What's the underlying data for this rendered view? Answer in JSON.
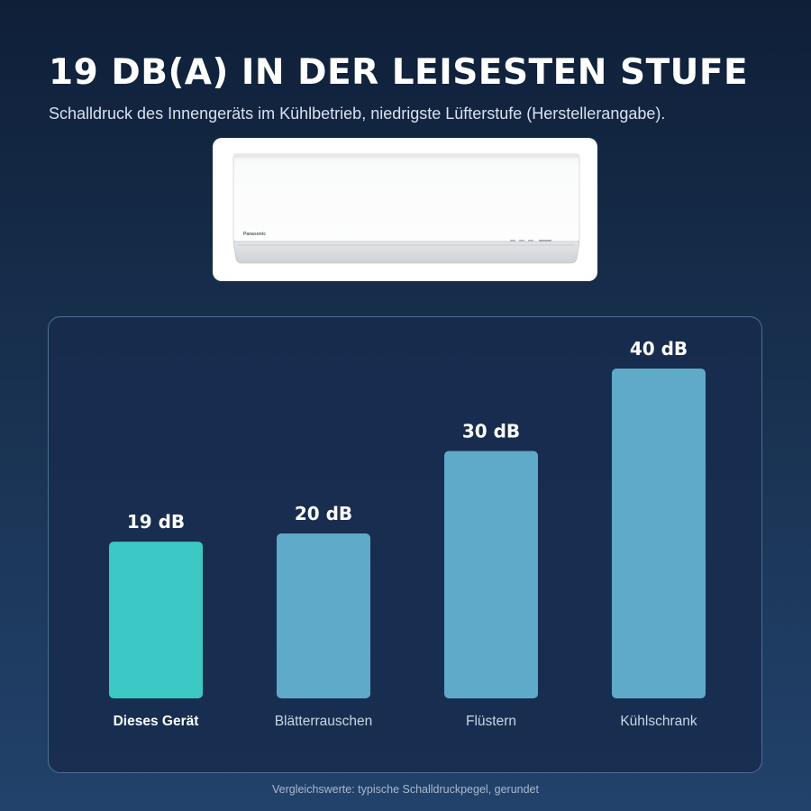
{
  "header": {
    "title": "19 DB(A) IN DER LEISESTEN STUFE",
    "subtitle": "Schalldruck des Innengeräts im Kühlbetrieb, niedrigste Lüfterstufe (Herstellerangabe)."
  },
  "product": {
    "brand": "Panasonic"
  },
  "chart_data": {
    "type": "bar",
    "categories": [
      "Dieses Gerät",
      "Blätterrauschen",
      "Flüstern",
      "Kühlschrank"
    ],
    "values": [
      19,
      20,
      30,
      40
    ],
    "value_labels": [
      "19 dB",
      "20 dB",
      "30 dB",
      "40 dB"
    ],
    "unit": "dB",
    "ylim": [
      0,
      40
    ],
    "highlight_index": 0,
    "colors": {
      "highlight": "#3cc8c5",
      "bar": "#5eaac8"
    },
    "grid": false,
    "legend": "none"
  },
  "footnote": "Vergleichswerte: typische Schalldruckpegel, gerundet"
}
